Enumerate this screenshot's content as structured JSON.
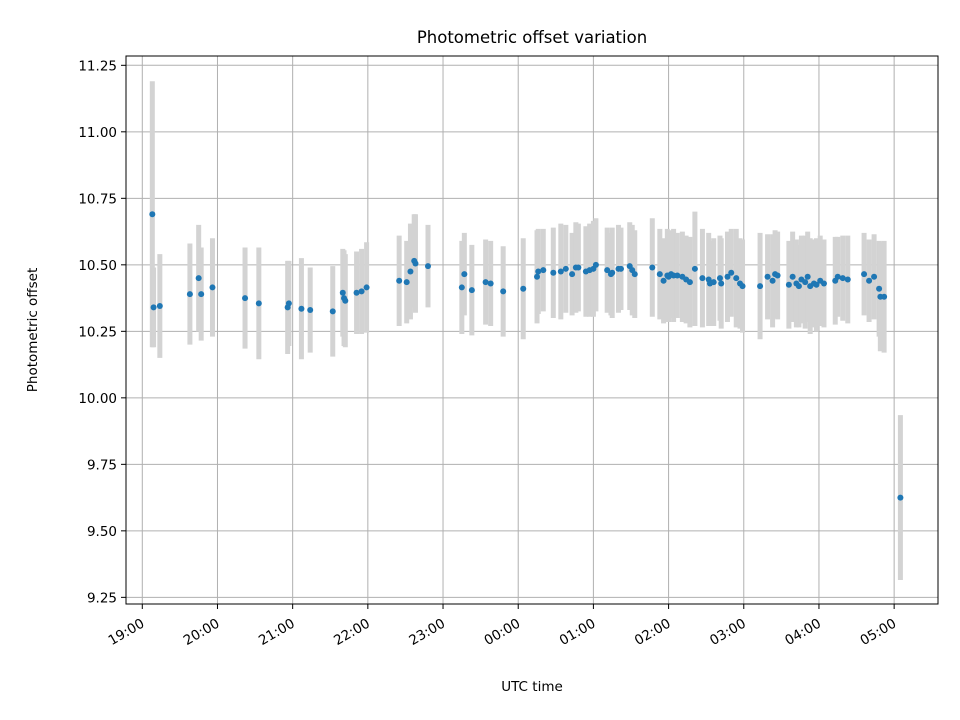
{
  "chart_data": {
    "type": "scatter",
    "title": "Photometric offset variation",
    "xlabel": "UTC time",
    "ylabel": "Photometric offset",
    "ylim": [
      9.225,
      11.285
    ],
    "xlim": [
      "2000-01-01T18:47:00",
      "2000-01-02T05:35:00"
    ],
    "grid": true,
    "colors": {
      "points": "#1f77b4",
      "errorbars": "#d3d3d3",
      "grid": "#b0b0b0"
    },
    "yticks": [
      "9.25",
      "9.50",
      "9.75",
      "10.00",
      "10.25",
      "10.50",
      "10.75",
      "11.00",
      "11.25"
    ],
    "xticks": [
      "19:00",
      "20:00",
      "21:00",
      "22:00",
      "23:00",
      "00:00",
      "01:00",
      "02:00",
      "03:00",
      "04:00",
      "05:00"
    ],
    "points": [
      {
        "t": "19:08",
        "y": 10.69,
        "err": 0.5
      },
      {
        "t": "19:09",
        "y": 10.34,
        "err": 0.15
      },
      {
        "t": "19:14",
        "y": 10.345,
        "err": 0.195
      },
      {
        "t": "19:38",
        "y": 10.39,
        "err": 0.19
      },
      {
        "t": "19:45",
        "y": 10.45,
        "err": 0.2
      },
      {
        "t": "19:47",
        "y": 10.39,
        "err": 0.175
      },
      {
        "t": "19:56",
        "y": 10.415,
        "err": 0.185
      },
      {
        "t": "20:22",
        "y": 10.375,
        "err": 0.19
      },
      {
        "t": "20:33",
        "y": 10.355,
        "err": 0.21
      },
      {
        "t": "20:56",
        "y": 10.34,
        "err": 0.175
      },
      {
        "t": "20:57",
        "y": 10.355,
        "err": 0.16
      },
      {
        "t": "21:07",
        "y": 10.335,
        "err": 0.19
      },
      {
        "t": "21:14",
        "y": 10.33,
        "err": 0.16
      },
      {
        "t": "21:32",
        "y": 10.325,
        "err": 0.17
      },
      {
        "t": "21:40",
        "y": 10.395,
        "err": 0.165
      },
      {
        "t": "21:41",
        "y": 10.375,
        "err": 0.18
      },
      {
        "t": "21:42",
        "y": 10.365,
        "err": 0.175
      },
      {
        "t": "21:51",
        "y": 10.395,
        "err": 0.155
      },
      {
        "t": "21:55",
        "y": 10.4,
        "err": 0.16
      },
      {
        "t": "21:59",
        "y": 10.415,
        "err": 0.17
      },
      {
        "t": "22:25",
        "y": 10.44,
        "err": 0.17
      },
      {
        "t": "22:31",
        "y": 10.435,
        "err": 0.155
      },
      {
        "t": "22:34",
        "y": 10.475,
        "err": 0.18
      },
      {
        "t": "22:37",
        "y": 10.515,
        "err": 0.175
      },
      {
        "t": "22:38",
        "y": 10.505,
        "err": 0.185
      },
      {
        "t": "22:48",
        "y": 10.495,
        "err": 0.155
      },
      {
        "t": "23:15",
        "y": 10.415,
        "err": 0.175
      },
      {
        "t": "23:17",
        "y": 10.465,
        "err": 0.155
      },
      {
        "t": "23:23",
        "y": 10.405,
        "err": 0.17
      },
      {
        "t": "23:34",
        "y": 10.435,
        "err": 0.16
      },
      {
        "t": "23:38",
        "y": 10.43,
        "err": 0.16
      },
      {
        "t": "23:48",
        "y": 10.4,
        "err": 0.17
      },
      {
        "t": "00:04",
        "y": 10.41,
        "err": 0.19
      },
      {
        "t": "00:15",
        "y": 10.455,
        "err": 0.175
      },
      {
        "t": "00:16",
        "y": 10.475,
        "err": 0.16
      },
      {
        "t": "00:20",
        "y": 10.48,
        "err": 0.155
      },
      {
        "t": "00:28",
        "y": 10.47,
        "err": 0.17
      },
      {
        "t": "00:34",
        "y": 10.475,
        "err": 0.18
      },
      {
        "t": "00:38",
        "y": 10.485,
        "err": 0.165
      },
      {
        "t": "00:43",
        "y": 10.465,
        "err": 0.155
      },
      {
        "t": "00:46",
        "y": 10.49,
        "err": 0.17
      },
      {
        "t": "00:48",
        "y": 10.49,
        "err": 0.165
      },
      {
        "t": "00:54",
        "y": 10.475,
        "err": 0.17
      },
      {
        "t": "00:57",
        "y": 10.48,
        "err": 0.175
      },
      {
        "t": "01:00",
        "y": 10.485,
        "err": 0.18
      },
      {
        "t": "01:02",
        "y": 10.5,
        "err": 0.175
      },
      {
        "t": "01:11",
        "y": 10.48,
        "err": 0.16
      },
      {
        "t": "01:14",
        "y": 10.465,
        "err": 0.155
      },
      {
        "t": "01:15",
        "y": 10.47,
        "err": 0.17
      },
      {
        "t": "01:20",
        "y": 10.485,
        "err": 0.165
      },
      {
        "t": "01:22",
        "y": 10.485,
        "err": 0.155
      },
      {
        "t": "01:29",
        "y": 10.495,
        "err": 0.165
      },
      {
        "t": "01:31",
        "y": 10.48,
        "err": 0.17
      },
      {
        "t": "01:33",
        "y": 10.465,
        "err": 0.165
      },
      {
        "t": "01:47",
        "y": 10.49,
        "err": 0.185
      },
      {
        "t": "01:53",
        "y": 10.465,
        "err": 0.17
      },
      {
        "t": "01:56",
        "y": 10.44,
        "err": 0.16
      },
      {
        "t": "01:59",
        "y": 10.46,
        "err": 0.175
      },
      {
        "t": "02:00",
        "y": 10.455,
        "err": 0.17
      },
      {
        "t": "02:02",
        "y": 10.465,
        "err": 0.165
      },
      {
        "t": "02:04",
        "y": 10.46,
        "err": 0.175
      },
      {
        "t": "02:07",
        "y": 10.46,
        "err": 0.16
      },
      {
        "t": "02:11",
        "y": 10.455,
        "err": 0.17
      },
      {
        "t": "02:14",
        "y": 10.445,
        "err": 0.165
      },
      {
        "t": "02:17",
        "y": 10.435,
        "err": 0.17
      },
      {
        "t": "02:21",
        "y": 10.485,
        "err": 0.215
      },
      {
        "t": "02:27",
        "y": 10.45,
        "err": 0.185
      },
      {
        "t": "02:32",
        "y": 10.445,
        "err": 0.175
      },
      {
        "t": "02:33",
        "y": 10.43,
        "err": 0.16
      },
      {
        "t": "02:36",
        "y": 10.435,
        "err": 0.165
      },
      {
        "t": "02:41",
        "y": 10.45,
        "err": 0.16
      },
      {
        "t": "02:42",
        "y": 10.43,
        "err": 0.17
      },
      {
        "t": "02:47",
        "y": 10.455,
        "err": 0.17
      },
      {
        "t": "02:50",
        "y": 10.47,
        "err": 0.165
      },
      {
        "t": "02:54",
        "y": 10.45,
        "err": 0.185
      },
      {
        "t": "02:57",
        "y": 10.43,
        "err": 0.17
      },
      {
        "t": "02:59",
        "y": 10.42,
        "err": 0.175
      },
      {
        "t": "03:13",
        "y": 10.42,
        "err": 0.2
      },
      {
        "t": "03:19",
        "y": 10.455,
        "err": 0.16
      },
      {
        "t": "03:23",
        "y": 10.44,
        "err": 0.175
      },
      {
        "t": "03:25",
        "y": 10.465,
        "err": 0.165
      },
      {
        "t": "03:27",
        "y": 10.46,
        "err": 0.165
      },
      {
        "t": "03:36",
        "y": 10.425,
        "err": 0.165
      },
      {
        "t": "03:39",
        "y": 10.455,
        "err": 0.17
      },
      {
        "t": "03:42",
        "y": 10.43,
        "err": 0.165
      },
      {
        "t": "03:44",
        "y": 10.42,
        "err": 0.155
      },
      {
        "t": "03:46",
        "y": 10.445,
        "err": 0.165
      },
      {
        "t": "03:49",
        "y": 10.435,
        "err": 0.175
      },
      {
        "t": "03:51",
        "y": 10.455,
        "err": 0.17
      },
      {
        "t": "03:53",
        "y": 10.42,
        "err": 0.18
      },
      {
        "t": "03:56",
        "y": 10.43,
        "err": 0.165
      },
      {
        "t": "03:58",
        "y": 10.425,
        "err": 0.175
      },
      {
        "t": "04:01",
        "y": 10.44,
        "err": 0.17
      },
      {
        "t": "04:04",
        "y": 10.43,
        "err": 0.165
      },
      {
        "t": "04:13",
        "y": 10.44,
        "err": 0.165
      },
      {
        "t": "04:15",
        "y": 10.455,
        "err": 0.15
      },
      {
        "t": "04:19",
        "y": 10.45,
        "err": 0.16
      },
      {
        "t": "04:23",
        "y": 10.445,
        "err": 0.165
      },
      {
        "t": "04:36",
        "y": 10.465,
        "err": 0.155
      },
      {
        "t": "04:40",
        "y": 10.44,
        "err": 0.155
      },
      {
        "t": "04:44",
        "y": 10.455,
        "err": 0.16
      },
      {
        "t": "04:48",
        "y": 10.41,
        "err": 0.18
      },
      {
        "t": "04:49",
        "y": 10.38,
        "err": 0.205
      },
      {
        "t": "04:52",
        "y": 10.38,
        "err": 0.21
      },
      {
        "t": "05:05",
        "y": 9.625,
        "err": 0.31
      }
    ]
  }
}
